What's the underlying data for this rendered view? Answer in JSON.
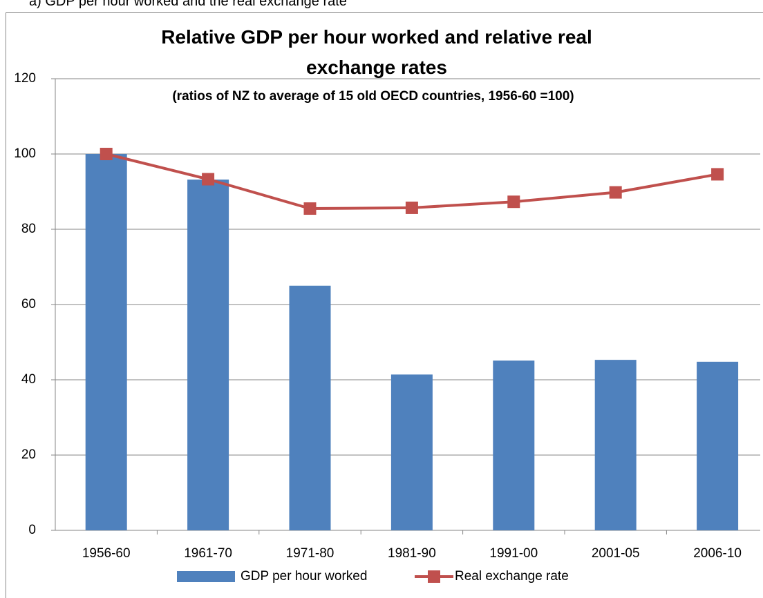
{
  "heading": "a)  GDP per hour worked and the real exchange rate",
  "chart_data": {
    "type": "combo",
    "title": "Relative GDP per hour worked and relative real exchange rates",
    "subtitle": "(ratios of NZ to average of 15 old OECD countries, 1956-60 =100)",
    "categories": [
      "1956-60",
      "1961-70",
      "1971-80",
      "1981-90",
      "1991-00",
      "2001-05",
      "2006-10"
    ],
    "series": [
      {
        "name": "GDP per hour worked",
        "type": "bar",
        "color": "#4f81bd",
        "values": [
          100,
          93.2,
          65,
          41.4,
          45.1,
          45.3,
          44.8
        ]
      },
      {
        "name": "Real exchange rate",
        "type": "line",
        "color": "#c0504d",
        "values": [
          100,
          93.3,
          85.5,
          85.7,
          87.3,
          89.8,
          94.6
        ]
      }
    ],
    "ylim": [
      0,
      120
    ],
    "yticks": [
      0,
      20,
      40,
      60,
      80,
      100,
      120
    ],
    "grid": true,
    "legend": "bottom"
  }
}
